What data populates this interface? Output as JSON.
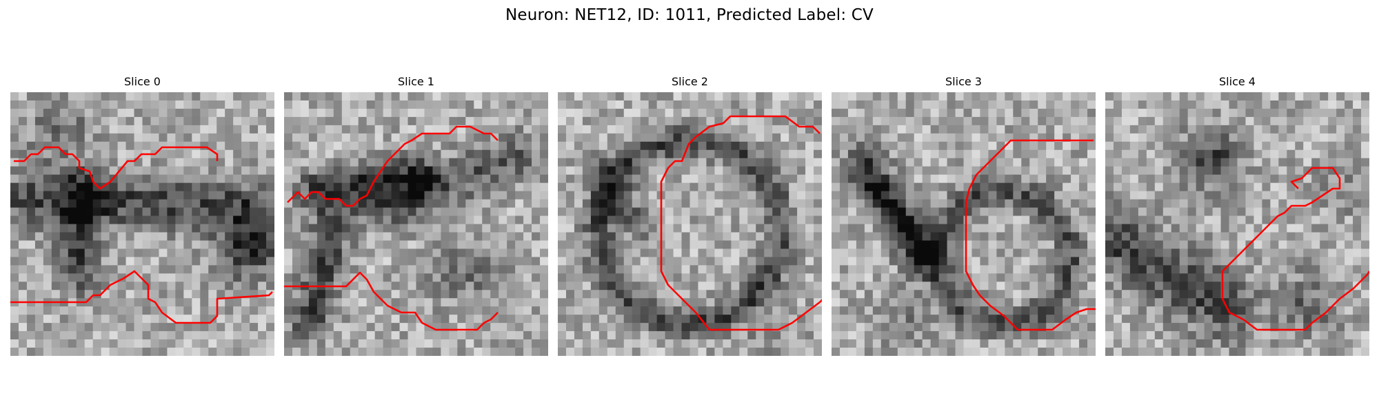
{
  "figure": {
    "title": "Neuron: NET12, ID: 1011, Predicted Label: CV"
  },
  "colors": {
    "contour": "#ff0000",
    "grayscale_dark": "#111111",
    "grayscale_light": "#f2f2f2"
  },
  "slices": [
    {
      "title": "Slice 0"
    },
    {
      "title": "Slice 1"
    },
    {
      "title": "Slice 2"
    },
    {
      "title": "Slice 3"
    },
    {
      "title": "Slice 4"
    }
  ]
}
